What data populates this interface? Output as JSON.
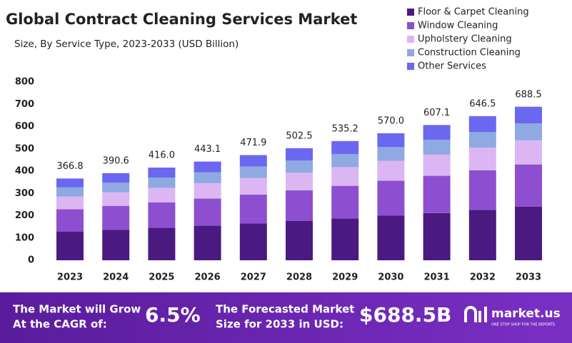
{
  "chart_data": {
    "type": "stacked_bar",
    "title": "Global Contract Cleaning Services Market",
    "subtitle": "Size, By Service Type, 2023-2033 (USD Billion)",
    "categories": [
      "2023",
      "2024",
      "2025",
      "2026",
      "2027",
      "2028",
      "2029",
      "2030",
      "2031",
      "2032",
      "2033"
    ],
    "series": [
      {
        "name": "Floor & Carpet Cleaning",
        "color": "#4b1a80",
        "values": [
          128,
          137,
          146,
          155,
          165,
          176,
          187,
          200,
          212,
          226,
          241
        ]
      },
      {
        "name": "Window Cleaning",
        "color": "#8d4fcf",
        "values": [
          101,
          107,
          114,
          122,
          130,
          138,
          147,
          157,
          167,
          178,
          189
        ]
      },
      {
        "name": "Upholstery Cleaning",
        "color": "#dcb6f2",
        "values": [
          57,
          61,
          65,
          69,
          74,
          79,
          84,
          89,
          95,
          101,
          108
        ]
      },
      {
        "name": "Construction Cleaning",
        "color": "#8fa9e2",
        "values": [
          41,
          43,
          46,
          49,
          52,
          55,
          59,
          62,
          67,
          71,
          76
        ]
      },
      {
        "name": "Other Services",
        "color": "#6a68f0",
        "values": [
          40,
          43,
          45,
          48,
          51,
          55,
          58,
          62,
          66,
          71,
          75
        ]
      }
    ],
    "totals": [
      366.8,
      390.6,
      416.0,
      443.1,
      471.9,
      502.5,
      535.2,
      570.0,
      607.1,
      646.5,
      688.5
    ],
    "totals_labels": [
      "366.8",
      "390.6",
      "416.0",
      "443.1",
      "471.9",
      "502.5",
      "535.2",
      "570.0",
      "607.1",
      "646.5",
      "688.5"
    ],
    "ylim": [
      0,
      800
    ],
    "yticks": [
      0,
      100,
      200,
      300,
      400,
      500,
      600,
      700,
      800
    ],
    "grid": false,
    "legend": "top-right"
  },
  "footer": {
    "cagr_text_1": "The Market will Grow",
    "cagr_text_2": "At the CAGR of:",
    "cagr": "6.5%",
    "forecast_text_1": "The Forecasted Market",
    "forecast_text_2": "Size for 2033 in USD:",
    "forecast": "$688.5B",
    "brand": "market.us",
    "tagline": "ONE STOP SHOP FOR THE REPORTS"
  }
}
